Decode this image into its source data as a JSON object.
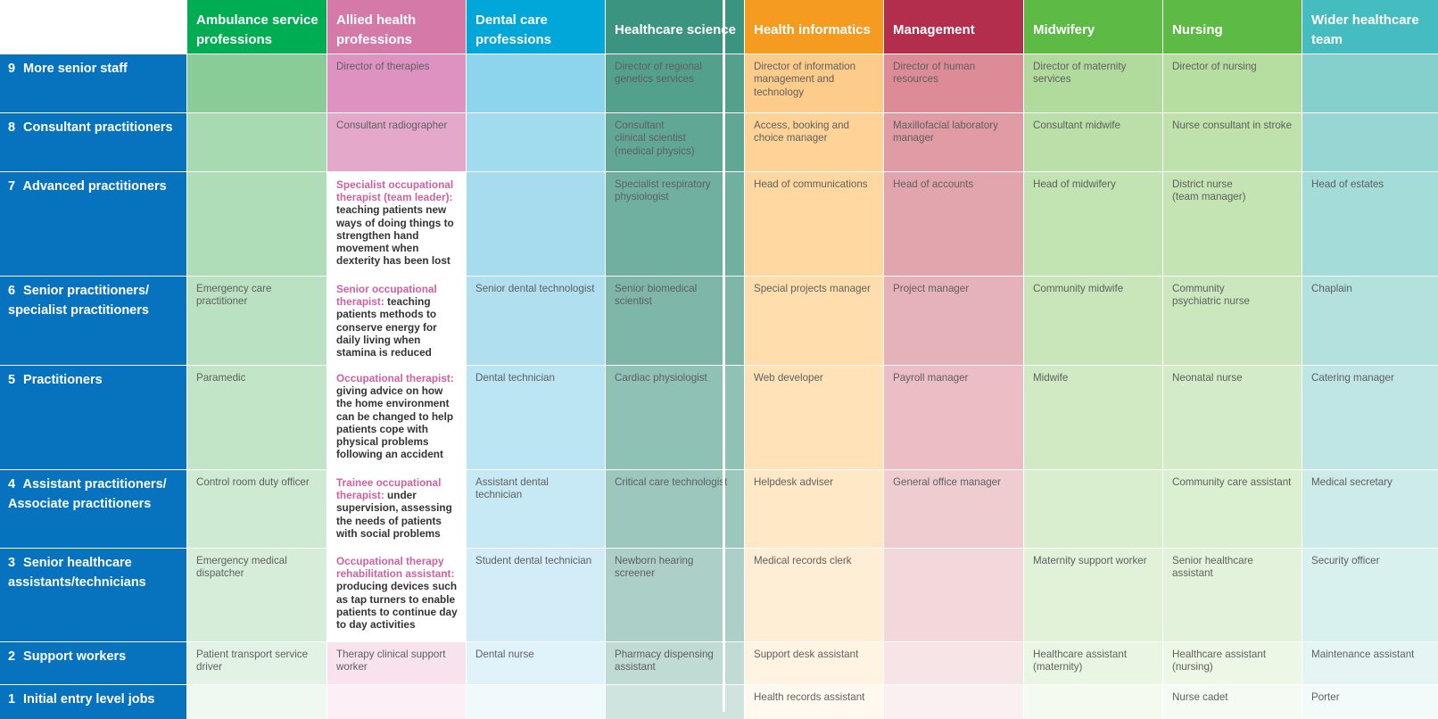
{
  "columns": [
    {
      "label": "Ambulance service professions",
      "color": "#00ad52"
    },
    {
      "label": "Allied health professions",
      "color": "#d479a8"
    },
    {
      "label": "Dental care professions",
      "color": "#00a7d8"
    },
    {
      "label": "Healthcare science",
      "color": "#3b9480"
    },
    {
      "label": "Health informatics",
      "color": "#f59b20"
    },
    {
      "label": "Management",
      "color": "#b22e4c"
    },
    {
      "label": "Midwifery",
      "color": "#5dba45"
    },
    {
      "label": "Nursing",
      "color": "#5dba45"
    },
    {
      "label": "Wider healthcare team",
      "color": "#45bcc0"
    }
  ],
  "row_header_color": "#0773be",
  "rows": [
    {
      "num": "9",
      "label": "More senior staff",
      "cells": [
        "",
        "Director of therapies",
        "",
        "Director of regional genetics services",
        "Director of information management and technology",
        "Director of human resources",
        "Director of maternity services",
        "Director of nursing",
        ""
      ]
    },
    {
      "num": "8",
      "label": "Consultant practitioners",
      "cells": [
        "",
        "Consultant radiographer",
        "",
        "Consultant\nclinical scientist\n(medical physics)",
        "Access, booking and choice manager",
        "Maxillofacial laboratory manager",
        "Consultant midwife",
        "Nurse consultant in stroke",
        ""
      ]
    },
    {
      "num": "7",
      "label": "Advanced practitioners",
      "cells": [
        "",
        "",
        "",
        "Specialist respiratory physiologist",
        "Head of communications",
        "Head of accounts",
        "Head of midwifery",
        "District nurse\n(team manager)",
        "Head of estates"
      ],
      "special": {
        "title": "Specialist occupational therapist (team leader):",
        "desc": "teaching patients new ways of doing things to strengthen hand movement when dexterity has been lost"
      }
    },
    {
      "num": "6",
      "label": "Senior practitioners/\nspecialist practitioners",
      "cells": [
        "Emergency care practitioner",
        "",
        "Senior dental technologist",
        "Senior biomedical scientist",
        "Special projects manager",
        "Project manager",
        "Community midwife",
        "Community\npsychiatric nurse",
        "Chaplain"
      ],
      "special": {
        "title": "Senior occupational therapist:",
        "desc": "teaching patients methods to conserve energy for daily living when stamina is reduced"
      }
    },
    {
      "num": "5",
      "label": "Practitioners",
      "cells": [
        "Paramedic",
        "",
        "Dental technician",
        "Cardiac physiologist",
        "Web developer",
        "Payroll manager",
        "Midwife",
        "Neonatal nurse",
        "Catering manager"
      ],
      "special": {
        "title": "Occupational therapist:",
        "desc": "giving advice on how the home environment can be changed to help patients cope with physical problems following an accident"
      }
    },
    {
      "num": "4",
      "label": "Assistant practitioners/\nAssociate practitioners",
      "cells": [
        "Control room duty officer",
        "",
        "Assistant dental technician",
        "Critical care technologist",
        "Helpdesk adviser",
        "General office manager",
        "",
        "Community care assistant",
        "Medical secretary"
      ],
      "special": {
        "title": "Trainee occupational therapist:",
        "desc": "under supervision, assessing the needs of patients with social problems"
      }
    },
    {
      "num": "3",
      "label": "Senior healthcare\nassistants/technicians",
      "cells": [
        "Emergency medical dispatcher",
        "",
        "Student dental technician",
        "Newborn hearing screener",
        "Medical records clerk",
        "",
        "Maternity support worker",
        "Senior healthcare assistant",
        "Security officer"
      ],
      "special": {
        "title": "Occupational therapy rehabilitation assistant:",
        "desc": "producing devices such as tap turners to enable patients to continue day to day activities"
      }
    },
    {
      "num": "2",
      "label": "Support workers",
      "cells": [
        "Patient transport service driver",
        "Therapy clinical support worker",
        "Dental nurse",
        "Pharmacy dispensing assistant",
        "Support desk assistant",
        "",
        "Healthcare assistant (maternity)",
        "Healthcare assistant (nursing)",
        "Maintenance assistant"
      ]
    },
    {
      "num": "1",
      "label": "Initial entry level jobs",
      "cells": [
        "",
        "",
        "",
        "",
        "Health records assistant",
        "",
        "",
        "Nurse cadet",
        "Porter"
      ]
    }
  ]
}
